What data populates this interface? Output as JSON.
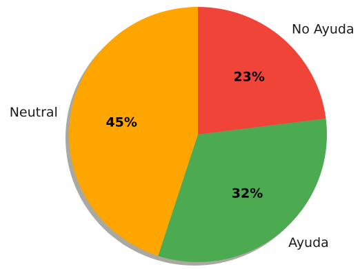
{
  "chart_data": {
    "type": "pie",
    "categories": [
      "No Ayuda",
      "Ayuda",
      "Neutral"
    ],
    "values": [
      23,
      32,
      45
    ],
    "value_labels": [
      "23%",
      "32%",
      "45%"
    ],
    "colors": [
      "#f04438",
      "#4caa50",
      "#ffa500"
    ],
    "start": "top",
    "direction": "clockwise",
    "shadow": true,
    "legend": "none"
  }
}
